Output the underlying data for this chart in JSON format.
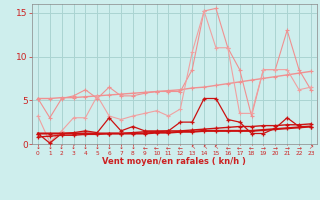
{
  "x": [
    0,
    1,
    2,
    3,
    4,
    5,
    6,
    7,
    8,
    9,
    10,
    11,
    12,
    13,
    14,
    15,
    16,
    17,
    18,
    19,
    20,
    21,
    22,
    23
  ],
  "line_light_pink_high": [
    5.2,
    3.0,
    5.2,
    5.5,
    6.2,
    5.2,
    6.5,
    5.5,
    5.5,
    5.8,
    6.0,
    6.0,
    6.0,
    8.5,
    15.2,
    15.5,
    11.0,
    8.5,
    3.2,
    8.5,
    8.5,
    13.0,
    8.5,
    6.2
  ],
  "line_pink_trend": [
    5.2,
    5.2,
    5.3,
    5.3,
    5.4,
    5.5,
    5.6,
    5.7,
    5.8,
    5.9,
    6.0,
    6.1,
    6.2,
    6.4,
    6.5,
    6.7,
    6.9,
    7.1,
    7.3,
    7.5,
    7.7,
    7.9,
    8.1,
    8.3
  ],
  "line_pink_lower": [
    3.2,
    0.2,
    1.5,
    3.0,
    3.0,
    5.5,
    3.2,
    2.8,
    3.2,
    3.5,
    3.8,
    3.2,
    4.0,
    10.5,
    15.2,
    11.0,
    11.0,
    3.5,
    3.5,
    8.5,
    8.5,
    8.5,
    6.2,
    6.5
  ],
  "line_red_spiky": [
    1.2,
    0.1,
    1.2,
    1.3,
    1.5,
    1.3,
    3.0,
    1.5,
    2.0,
    1.5,
    1.5,
    1.5,
    2.5,
    2.5,
    5.2,
    5.2,
    2.8,
    2.5,
    1.2,
    1.2,
    1.8,
    3.0,
    2.0,
    2.0
  ],
  "line_red_flat": [
    1.2,
    1.2,
    1.2,
    1.2,
    1.2,
    1.2,
    1.2,
    1.2,
    1.2,
    1.2,
    1.3,
    1.3,
    1.4,
    1.4,
    1.5,
    1.5,
    1.5,
    1.5,
    1.5,
    1.6,
    1.7,
    1.8,
    1.9,
    2.0
  ],
  "line_red_trend": [
    0.8,
    0.9,
    1.0,
    1.0,
    1.1,
    1.1,
    1.2,
    1.2,
    1.3,
    1.4,
    1.4,
    1.5,
    1.5,
    1.6,
    1.7,
    1.8,
    1.9,
    2.0,
    2.0,
    2.1,
    2.1,
    2.2,
    2.2,
    2.3
  ],
  "xlabel": "Vent moyen/en rafales ( kn/h )",
  "ylim": [
    0,
    16
  ],
  "yticks": [
    0,
    5,
    10,
    15
  ],
  "bg_color": "#ceeeed",
  "grid_color": "#aad4d2",
  "tick_color": "#cc2222",
  "label_color": "#cc2222",
  "arrows": [
    "↓",
    "↓",
    "↓",
    "↓",
    "↓",
    "↓",
    "↓",
    "↓",
    "↓",
    "←",
    "←",
    "←",
    "←",
    "↖",
    "↖",
    "↖",
    "←",
    "←",
    "←",
    "→",
    "→",
    "→",
    "→",
    "↗"
  ]
}
